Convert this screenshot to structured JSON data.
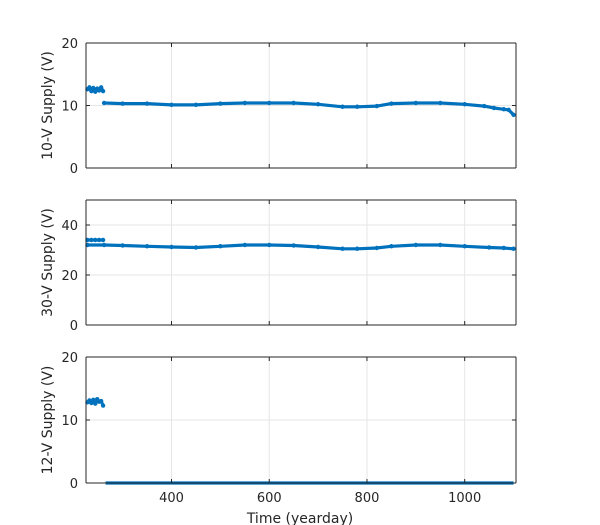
{
  "chart_data": [
    {
      "type": "scatter",
      "title": "",
      "xlabel": "",
      "ylabel": "10-V Supply (V)",
      "xlim": [
        225,
        1105
      ],
      "ylim": [
        0,
        20
      ],
      "xticks": [
        400,
        600,
        800,
        1000
      ],
      "yticks": [
        0,
        10,
        20
      ],
      "grid": true,
      "color": "#0072BD",
      "series": [
        {
          "x": [
            228,
            232,
            236,
            240,
            244,
            248,
            252,
            256,
            260
          ],
          "y": [
            12.6,
            12.9,
            12.3,
            12.8,
            12.2,
            12.7,
            12.4,
            12.9,
            12.3
          ]
        },
        {
          "x": [
            262,
            300,
            350,
            400,
            450,
            500,
            550,
            600,
            650,
            700,
            750,
            780,
            820,
            850,
            900,
            950,
            1000,
            1040,
            1060,
            1080,
            1090,
            1100
          ],
          "y": [
            10.4,
            10.3,
            10.3,
            10.1,
            10.1,
            10.3,
            10.4,
            10.4,
            10.4,
            10.2,
            9.8,
            9.8,
            9.9,
            10.3,
            10.4,
            10.4,
            10.2,
            9.9,
            9.6,
            9.4,
            9.3,
            8.5
          ]
        }
      ]
    },
    {
      "type": "scatter",
      "title": "",
      "xlabel": "",
      "ylabel": "30-V Supply (V)",
      "xlim": [
        225,
        1105
      ],
      "ylim": [
        0,
        50
      ],
      "xticks": [
        400,
        600,
        800,
        1000
      ],
      "yticks": [
        0,
        20,
        40
      ],
      "grid": true,
      "color": "#0072BD",
      "series": [
        {
          "x": [
            228,
            236,
            244,
            252,
            260
          ],
          "y": [
            34.0,
            34.0,
            34.0,
            34.0,
            34.0
          ]
        },
        {
          "x": [
            228,
            262,
            300,
            350,
            400,
            450,
            500,
            550,
            600,
            650,
            700,
            750,
            780,
            820,
            850,
            900,
            950,
            1000,
            1050,
            1080,
            1100
          ],
          "y": [
            32.0,
            32.0,
            31.8,
            31.5,
            31.2,
            31.0,
            31.5,
            32.0,
            32.0,
            31.8,
            31.2,
            30.5,
            30.5,
            30.8,
            31.5,
            32.0,
            32.0,
            31.5,
            31.0,
            30.8,
            30.5
          ]
        }
      ]
    },
    {
      "type": "scatter",
      "title": "",
      "xlabel": "Time (yearday)",
      "ylabel": "12-V Supply (V)",
      "xlim": [
        225,
        1105
      ],
      "ylim": [
        0,
        20
      ],
      "xticks": [
        400,
        600,
        800,
        1000
      ],
      "yticks": [
        0,
        10,
        20
      ],
      "grid": true,
      "color": "#0072BD",
      "series": [
        {
          "x": [
            228,
            232,
            236,
            240,
            244,
            248,
            252,
            256,
            260
          ],
          "y": [
            12.8,
            13.1,
            12.7,
            13.2,
            12.6,
            13.3,
            12.9,
            13.0,
            12.3
          ]
        },
        {
          "x": [
            265,
            1100
          ],
          "y": [
            0,
            0
          ]
        }
      ]
    }
  ]
}
